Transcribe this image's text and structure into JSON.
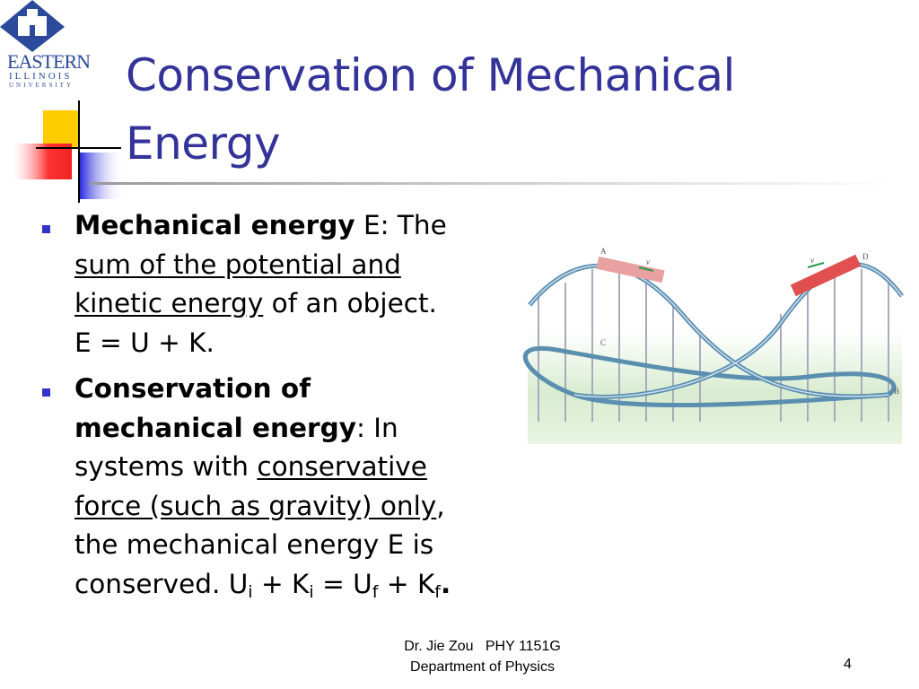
{
  "logo": {
    "line1": "EASTERN",
    "line2": "ILLINOIS",
    "line3": "UNIVERSITY"
  },
  "title": {
    "line1": "Conservation of Mechanical",
    "line2": "Energy"
  },
  "bullets": [
    {
      "runs": [
        "Mechanical energy",
        " E: The",
        "sum of the potential and",
        "kinetic energy",
        " of an object.",
        "E = U + K."
      ]
    },
    {
      "runs": [
        "Conservation of",
        "mechanical energy",
        ": In",
        "systems with ",
        "conservative",
        "force (such as gravity) only",
        ",",
        "the mechanical energy E is",
        "conserved. U",
        "i",
        " + K",
        "i",
        " = U",
        "f",
        " + K",
        "f",
        "."
      ]
    }
  ],
  "figure": {
    "labels": [
      "A",
      "B",
      "C",
      "D"
    ],
    "arrow": "v"
  },
  "footer": {
    "line1": "Dr. Jie Zou   PHY 1151G",
    "line2": "Department of Physics",
    "page": "4"
  }
}
